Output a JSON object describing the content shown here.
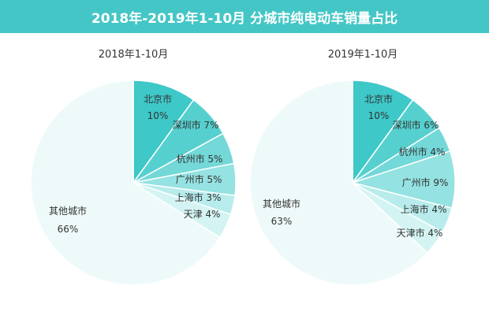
{
  "header": {
    "title": "2018年-2019年1-10月 分城市纯电动车销量占比"
  },
  "colors": {
    "header_bg": "#45c6c6",
    "slices": [
      "#3ec8c8",
      "#56d0cf",
      "#73d8d7",
      "#94e2e1",
      "#b8ecec",
      "#d3f4f3",
      "#eefaf9"
    ],
    "label": "#333333",
    "border": "#ffffff"
  },
  "chart_data": [
    {
      "type": "pie",
      "title": "2018年1-10月",
      "slices": [
        {
          "label": "北京市",
          "value": 10,
          "value_text": "10%"
        },
        {
          "label": "深圳市",
          "value": 7,
          "value_text": "7%"
        },
        {
          "label": "杭州市",
          "value": 5,
          "value_text": "5%"
        },
        {
          "label": "广州市",
          "value": 5,
          "value_text": "5%"
        },
        {
          "label": "上海市",
          "value": 3,
          "value_text": "3%"
        },
        {
          "label": "天津",
          "value": 4,
          "value_text": "4%"
        },
        {
          "label": "其他城市",
          "value": 66,
          "value_text": "66%"
        }
      ]
    },
    {
      "type": "pie",
      "title": "2019年1-10月",
      "slices": [
        {
          "label": "北京市",
          "value": 10,
          "value_text": "10%"
        },
        {
          "label": "深圳市",
          "value": 6,
          "value_text": "6%"
        },
        {
          "label": "杭州市",
          "value": 4,
          "value_text": "4%"
        },
        {
          "label": "广州市",
          "value": 9,
          "value_text": "9%"
        },
        {
          "label": "上海市",
          "value": 4,
          "value_text": "4%"
        },
        {
          "label": "天津市",
          "value": 4,
          "value_text": "4%"
        },
        {
          "label": "其他城市",
          "value": 63,
          "value_text": "63%"
        }
      ]
    }
  ]
}
